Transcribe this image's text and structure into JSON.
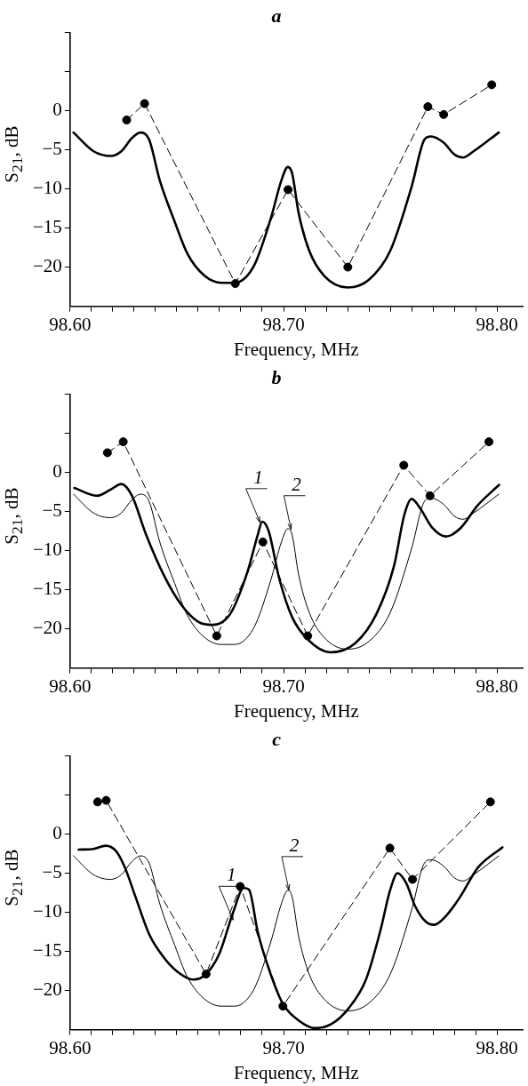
{
  "chart_data": [
    {
      "type": "line",
      "title": "a",
      "xlabel": "Frequency, MHz",
      "ylabel": "S$_{21}$, dB",
      "xlim": [
        98.6,
        98.812
      ],
      "ylim": [
        -25,
        10
      ],
      "xticks": [
        {
          "value": 98.6,
          "label": "98.60"
        },
        {
          "value": 98.61,
          "label": null
        },
        {
          "value": 98.62,
          "label": null
        },
        {
          "value": 98.63,
          "label": null
        },
        {
          "value": 98.64,
          "label": null
        },
        {
          "value": 98.65,
          "label": null
        },
        {
          "value": 98.66,
          "label": null
        },
        {
          "value": 98.67,
          "label": null
        },
        {
          "value": 98.68,
          "label": null
        },
        {
          "value": 98.69,
          "label": null
        },
        {
          "value": 98.7,
          "label": "98.70"
        },
        {
          "value": 98.71,
          "label": null
        },
        {
          "value": 98.72,
          "label": null
        },
        {
          "value": 98.73,
          "label": null
        },
        {
          "value": 98.74,
          "label": null
        },
        {
          "value": 98.75,
          "label": null
        },
        {
          "value": 98.76,
          "label": null
        },
        {
          "value": 98.77,
          "label": null
        },
        {
          "value": 98.78,
          "label": null
        },
        {
          "value": 98.79,
          "label": null
        },
        {
          "value": 98.8,
          "label": "98.80"
        }
      ],
      "yticks": [
        {
          "value": 10,
          "label": null
        },
        {
          "value": 5,
          "label": null
        },
        {
          "value": 0,
          "label": "0"
        },
        {
          "value": -5,
          "label": "−5"
        },
        {
          "value": -10,
          "label": "−10"
        },
        {
          "value": -15,
          "label": "−15"
        },
        {
          "value": -20,
          "label": "−20"
        }
      ],
      "grid": false,
      "legend": false,
      "series": [
        {
          "color": "#000000",
          "marker": "none",
          "line_style": "solid",
          "x": [
            98.6016,
            98.611,
            98.619,
            98.624,
            98.629,
            98.633,
            98.637,
            98.642,
            98.649,
            98.655,
            98.663,
            98.671,
            98.677,
            98.686,
            98.694,
            98.699,
            98.702,
            98.704,
            98.707,
            98.712,
            98.719,
            98.73,
            98.74,
            98.75,
            98.76,
            98.766,
            98.769,
            98.775,
            98.78,
            98.784,
            98.789,
            98.8008
          ],
          "values": [
            -2.8,
            -5.2,
            -5.8,
            -5.2,
            -3.5,
            -2.8,
            -3.7,
            -8.9,
            -14.2,
            -18.3,
            -21.1,
            -22.0,
            -22.0,
            -19.9,
            -13.8,
            -8.9,
            -7.2,
            -8.0,
            -13.0,
            -17.9,
            -21.1,
            -22.6,
            -21.6,
            -17.9,
            -9.7,
            -3.7,
            -3.3,
            -4.1,
            -5.6,
            -6.0,
            -5.2,
            -2.8
          ]
        },
        {
          "color": "#000000",
          "marker": "circle",
          "line_style": "dashed",
          "x": [
            98.6265,
            98.6349,
            98.6774,
            98.7021,
            98.7301,
            98.7676,
            98.775,
            98.7975
          ],
          "values": [
            -1.2,
            0.9,
            -22.1,
            -10.1,
            -20.0,
            0.5,
            -0.5,
            3.3
          ]
        }
      ]
    },
    {
      "type": "line",
      "title": "b",
      "xlabel": "Frequency, MHz",
      "ylabel": "S$_{21}$, dB",
      "xlim": [
        98.6,
        98.812
      ],
      "ylim": [
        -25,
        10
      ],
      "xticks": [
        {
          "value": 98.6,
          "label": "98.60"
        },
        {
          "value": 98.61,
          "label": null
        },
        {
          "value": 98.62,
          "label": null
        },
        {
          "value": 98.63,
          "label": null
        },
        {
          "value": 98.64,
          "label": null
        },
        {
          "value": 98.65,
          "label": null
        },
        {
          "value": 98.66,
          "label": null
        },
        {
          "value": 98.67,
          "label": null
        },
        {
          "value": 98.68,
          "label": null
        },
        {
          "value": 98.69,
          "label": null
        },
        {
          "value": 98.7,
          "label": "98.70"
        },
        {
          "value": 98.71,
          "label": null
        },
        {
          "value": 98.72,
          "label": null
        },
        {
          "value": 98.73,
          "label": null
        },
        {
          "value": 98.74,
          "label": null
        },
        {
          "value": 98.75,
          "label": null
        },
        {
          "value": 98.76,
          "label": null
        },
        {
          "value": 98.77,
          "label": null
        },
        {
          "value": 98.78,
          "label": null
        },
        {
          "value": 98.79,
          "label": null
        },
        {
          "value": 98.8,
          "label": "98.80"
        }
      ],
      "yticks": [
        {
          "value": 10,
          "label": null
        },
        {
          "value": 5,
          "label": null
        },
        {
          "value": 0,
          "label": "0"
        },
        {
          "value": -5,
          "label": "−5"
        },
        {
          "value": -10,
          "label": "−10"
        },
        {
          "value": -15,
          "label": "−15"
        },
        {
          "value": -20,
          "label": "−20"
        }
      ],
      "grid": false,
      "legend": false,
      "annotations": [
        {
          "text": "1",
          "x": 98.689,
          "y": -6.4
        },
        {
          "text": "2",
          "x": 98.7035,
          "y": -7.3
        }
      ],
      "series": [
        {
          "color": "#000000",
          "marker": "none",
          "line_style": "solid",
          "x": [
            98.602,
            98.6126,
            98.619,
            98.624,
            98.629,
            98.6355,
            98.644,
            98.652,
            98.66,
            98.6666,
            98.675,
            98.683,
            98.688,
            98.69,
            98.693,
            98.698,
            98.704,
            98.7115,
            98.722,
            98.7337,
            98.7435,
            98.7517,
            98.7566,
            98.76,
            98.764,
            98.7697,
            98.776,
            98.783,
            98.791,
            98.801
          ],
          "values": [
            -2.0,
            -3.0,
            -2.2,
            -1.5,
            -3.0,
            -7.9,
            -13.2,
            -16.9,
            -19.1,
            -19.5,
            -18.1,
            -12.8,
            -7.9,
            -6.3,
            -7.5,
            -13.6,
            -18.5,
            -21.4,
            -23.0,
            -21.8,
            -18.1,
            -12.0,
            -5.4,
            -3.4,
            -4.6,
            -7.1,
            -8.2,
            -7.1,
            -4.2,
            -1.6
          ]
        },
        {
          "color": "#000000",
          "marker": "none",
          "line_style": "solid",
          "x": [
            98.6016,
            98.611,
            98.619,
            98.624,
            98.629,
            98.633,
            98.637,
            98.642,
            98.649,
            98.655,
            98.663,
            98.671,
            98.677,
            98.686,
            98.694,
            98.699,
            98.702,
            98.704,
            98.707,
            98.712,
            98.719,
            98.73,
            98.74,
            98.75,
            98.76,
            98.766,
            98.769,
            98.775,
            98.78,
            98.784,
            98.789,
            98.8008
          ],
          "values": [
            -2.8,
            -5.2,
            -5.8,
            -5.2,
            -3.5,
            -2.8,
            -3.7,
            -8.9,
            -14.2,
            -18.3,
            -21.1,
            -22.0,
            -22.0,
            -19.9,
            -13.8,
            -8.9,
            -7.2,
            -8.0,
            -13.0,
            -17.9,
            -21.1,
            -22.6,
            -21.6,
            -17.9,
            -9.7,
            -3.7,
            -3.3,
            -4.1,
            -5.6,
            -6.0,
            -5.2,
            -2.8
          ]
        },
        {
          "color": "#000000",
          "marker": "circle",
          "line_style": "dashed",
          "x": [
            98.6175,
            98.6249,
            98.6687,
            98.6903,
            98.7113,
            98.7563,
            98.7686,
            98.7962
          ],
          "values": [
            2.5,
            3.9,
            -20.9,
            -8.9,
            -20.9,
            0.9,
            -3.0,
            3.9
          ]
        }
      ]
    },
    {
      "type": "line",
      "title": "c",
      "xlabel": "Frequency, MHz",
      "ylabel": "S$_{21}$, dB",
      "xlim": [
        98.6,
        98.812
      ],
      "ylim": [
        -25,
        10
      ],
      "xticks": [
        {
          "value": 98.6,
          "label": "98.60"
        },
        {
          "value": 98.61,
          "label": null
        },
        {
          "value": 98.62,
          "label": null
        },
        {
          "value": 98.63,
          "label": null
        },
        {
          "value": 98.64,
          "label": null
        },
        {
          "value": 98.65,
          "label": null
        },
        {
          "value": 98.66,
          "label": null
        },
        {
          "value": 98.67,
          "label": null
        },
        {
          "value": 98.68,
          "label": null
        },
        {
          "value": 98.69,
          "label": null
        },
        {
          "value": 98.7,
          "label": "98.70"
        },
        {
          "value": 98.71,
          "label": null
        },
        {
          "value": 98.72,
          "label": null
        },
        {
          "value": 98.73,
          "label": null
        },
        {
          "value": 98.74,
          "label": null
        },
        {
          "value": 98.75,
          "label": null
        },
        {
          "value": 98.76,
          "label": null
        },
        {
          "value": 98.77,
          "label": null
        },
        {
          "value": 98.78,
          "label": null
        },
        {
          "value": 98.79,
          "label": null
        },
        {
          "value": 98.8,
          "label": "98.80"
        }
      ],
      "yticks": [
        {
          "value": 10,
          "label": null
        },
        {
          "value": 5,
          "label": null
        },
        {
          "value": 0,
          "label": "0"
        },
        {
          "value": -5,
          "label": "−5"
        },
        {
          "value": -10,
          "label": "−10"
        },
        {
          "value": -15,
          "label": "−15"
        },
        {
          "value": -20,
          "label": "−20"
        }
      ],
      "grid": false,
      "legend": false,
      "annotations": [
        {
          "text": "1",
          "x": 98.6764,
          "y": -11
        },
        {
          "text": "2",
          "x": 98.7025,
          "y": -7.2
        }
      ],
      "series": [
        {
          "color": "#000000",
          "marker": "none",
          "line_style": "solid",
          "x": [
            98.604,
            98.611,
            98.6167,
            98.6216,
            98.6257,
            98.6306,
            98.6372,
            98.6437,
            98.6503,
            98.6577,
            98.6633,
            98.6699,
            98.6764,
            98.6813,
            98.6838,
            98.6879,
            98.6928,
            98.6993,
            98.7075,
            98.7149,
            98.7223,
            98.7304,
            98.7386,
            98.7452,
            98.75,
            98.7534,
            98.7575,
            98.7616,
            98.7666,
            98.7705,
            98.7763,
            98.7828,
            98.791,
            98.8025
          ],
          "values": [
            -2.0,
            -1.9,
            -1.5,
            -2.2,
            -4.3,
            -8.0,
            -12.9,
            -15.7,
            -17.6,
            -18.6,
            -18.0,
            -15.3,
            -10.0,
            -6.9,
            -7.1,
            -12.5,
            -17.0,
            -21.5,
            -23.9,
            -24.8,
            -24.3,
            -22.3,
            -18.6,
            -12.5,
            -7.1,
            -5.0,
            -6.3,
            -9.2,
            -11.2,
            -11.6,
            -10.4,
            -8.0,
            -4.3,
            -1.7
          ]
        },
        {
          "color": "#000000",
          "marker": "none",
          "line_style": "solid",
          "x": [
            98.6016,
            98.611,
            98.619,
            98.624,
            98.629,
            98.633,
            98.637,
            98.642,
            98.649,
            98.655,
            98.663,
            98.671,
            98.677,
            98.686,
            98.694,
            98.699,
            98.702,
            98.704,
            98.707,
            98.712,
            98.719,
            98.73,
            98.74,
            98.75,
            98.76,
            98.766,
            98.769,
            98.775,
            98.78,
            98.784,
            98.789,
            98.8008
          ],
          "values": [
            -2.8,
            -5.2,
            -5.8,
            -5.2,
            -3.5,
            -2.8,
            -3.7,
            -8.9,
            -14.2,
            -18.3,
            -21.1,
            -22.0,
            -22.0,
            -19.9,
            -13.8,
            -8.9,
            -7.2,
            -8.0,
            -13.0,
            -17.9,
            -21.1,
            -22.6,
            -21.6,
            -17.9,
            -9.7,
            -3.7,
            -3.3,
            -4.1,
            -5.6,
            -6.0,
            -5.2,
            -2.8
          ]
        },
        {
          "color": "#000000",
          "marker": "circle",
          "line_style": "dashed",
          "x": [
            98.6129,
            98.6169,
            98.6637,
            98.6797,
            98.6997,
            98.7498,
            98.7604,
            98.7969
          ],
          "values": [
            4.1,
            4.3,
            -17.9,
            -6.7,
            -22.0,
            -1.8,
            -5.8,
            4.1
          ]
        }
      ]
    }
  ]
}
